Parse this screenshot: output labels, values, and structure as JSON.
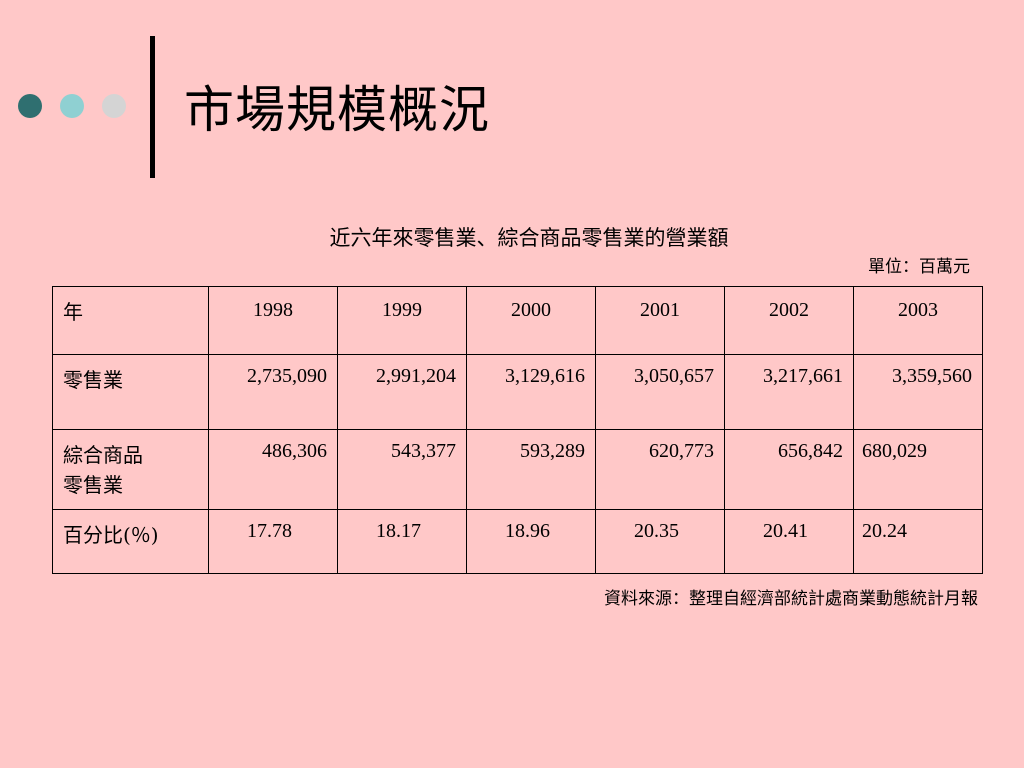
{
  "slide": {
    "title": "市場規模概況",
    "subtitle": "近六年來零售業、綜合商品零售業的營業額",
    "unit": "單位：百萬元",
    "source": "資料來源：整理自經濟部統計處商業動態統計月報"
  },
  "table": {
    "header_label": "年",
    "years": [
      "1998",
      "1999",
      "2000",
      "2001",
      "2002",
      "2003"
    ],
    "rows": [
      {
        "label_line1": "零售業",
        "label_line2": "",
        "values": [
          "2,735,090",
          "2,991,204",
          "3,129,616",
          "3,050,657",
          "3,217,661",
          "3,359,560"
        ]
      },
      {
        "label_line1": "綜合商品",
        "label_line2": "零售業",
        "values": [
          "486,306",
          "543,377",
          "593,289",
          "620,773",
          "656,842",
          "680,029"
        ]
      },
      {
        "label_line1": "百分比(％)",
        "label_line2": "",
        "values": [
          "17.78",
          "18.17",
          "18.96",
          "20.35",
          "20.41",
          "20.24"
        ]
      }
    ]
  },
  "colors": {
    "background": "#ffc8c8",
    "dot1": "#2f6f70",
    "dot2": "#8fd0d2",
    "dot3": "#d4d4d4"
  }
}
